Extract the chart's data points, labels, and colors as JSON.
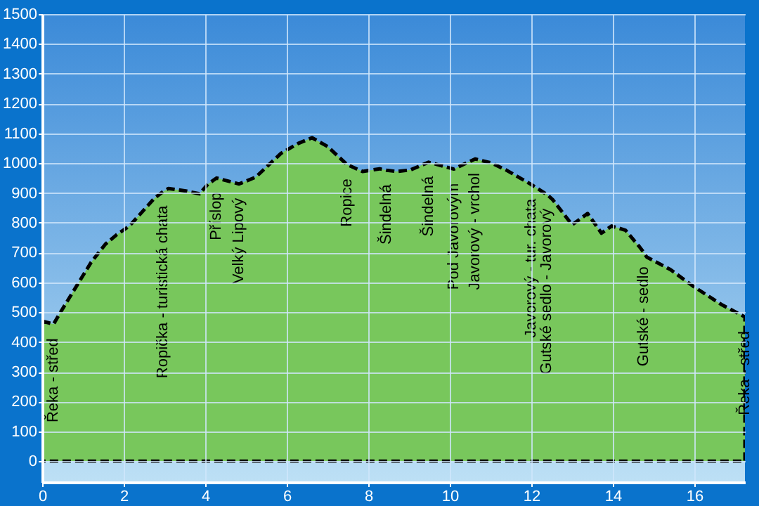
{
  "chart_data": {
    "type": "area",
    "x": [
      0,
      0.28,
      0.45,
      0.8,
      1.2,
      1.55,
      1.83,
      2.14,
      2.76,
      2.97,
      3.1,
      3.55,
      3.86,
      4.07,
      4.28,
      4.83,
      5.24,
      5.86,
      6.28,
      6.62,
      7.0,
      7.48,
      7.86,
      8.28,
      8.45,
      8.69,
      9.03,
      9.48,
      10.1,
      10.62,
      11.03,
      11.38,
      12.0,
      12.38,
      12.52,
      13.0,
      13.38,
      13.72,
      13.97,
      14.31,
      14.66,
      14.76,
      14.83,
      15.41,
      15.97,
      16.66,
      17.24
    ],
    "series": [
      {
        "color": "#78c75c",
        "values": [
          470,
          460,
          500,
          578,
          667,
          728,
          760,
          789,
          883,
          905,
          915,
          906,
          897,
          930,
          950,
          930,
          953,
          1033,
          1066,
          1085,
          1056,
          995,
          972,
          981,
          976,
          972,
          977,
          1003,
          980,
          1014,
          1000,
          977,
          928,
          895,
          878,
          793,
          831,
          765,
          789,
          775,
          718,
          700,
          685,
          643,
          587,
          526,
          484
        ]
      }
    ],
    "xlim": [
      0,
      17.24
    ],
    "xticks": [
      0,
      2,
      4,
      6,
      8,
      10,
      12,
      14,
      16
    ],
    "ylim": [
      -70,
      1500
    ],
    "yticks": [
      0,
      100,
      200,
      300,
      400,
      500,
      600,
      700,
      800,
      900,
      1000,
      1100,
      1200,
      1300,
      1400,
      1500
    ],
    "grid": true,
    "line_style": "dashed",
    "annotations": [
      {
        "text": "Řeka - střed",
        "x": 0.28,
        "y": 460
      },
      {
        "text": "Ropička - turistická chata",
        "x": 2.97,
        "y": 905
      },
      {
        "text": "Příslop",
        "x": 4.28,
        "y": 950
      },
      {
        "text": "Velký Lipový",
        "x": 4.83,
        "y": 930
      },
      {
        "text": "Ropice",
        "x": 7.48,
        "y": 995
      },
      {
        "text": "Šindelná",
        "x": 8.45,
        "y": 976
      },
      {
        "text": "Šindelná",
        "x": 9.48,
        "y": 1003
      },
      {
        "text": "Pod Javorovým",
        "x": 10.1,
        "y": 980
      },
      {
        "text": "Javorový - vrchol",
        "x": 10.62,
        "y": 1014
      },
      {
        "text": "Javorový - tur. chata",
        "x": 12.0,
        "y": 928
      },
      {
        "text": "Gutské sedlo - Javorový",
        "x": 12.38,
        "y": 895
      },
      {
        "text": "Gutské - sedlo",
        "x": 14.76,
        "y": 700
      },
      {
        "text": "Řeka - střed",
        "x": 17.24,
        "y": 484
      }
    ]
  }
}
